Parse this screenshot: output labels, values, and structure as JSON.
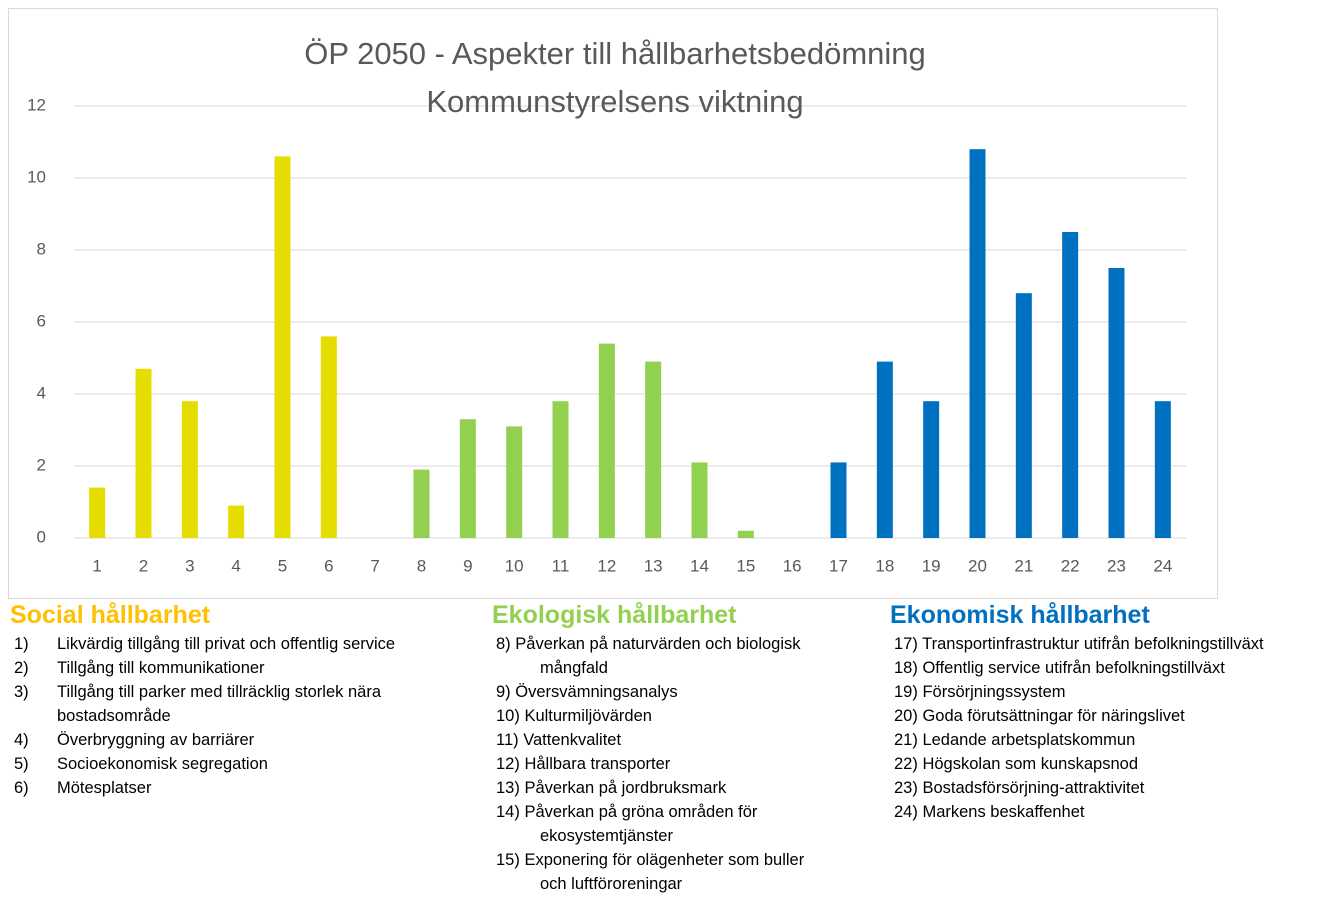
{
  "chart_data": {
    "type": "bar",
    "title": "ÖP 2050 - Aspekter till hållbarhetsbedömning",
    "subtitle": "Kommunstyrelsens viktning",
    "categories": [
      "1",
      "2",
      "3",
      "4",
      "5",
      "6",
      "7",
      "8",
      "9",
      "10",
      "11",
      "12",
      "13",
      "14",
      "15",
      "16",
      "17",
      "18",
      "19",
      "20",
      "21",
      "22",
      "23",
      "24"
    ],
    "values": [
      1.4,
      4.7,
      3.8,
      0.9,
      10.6,
      5.6,
      0,
      1.9,
      3.3,
      3.1,
      3.8,
      5.4,
      4.9,
      2.1,
      0.2,
      0,
      2.1,
      4.9,
      3.8,
      10.8,
      6.8,
      8.5,
      7.5,
      3.8
    ],
    "colors": [
      "#e5dc00",
      "#e5dc00",
      "#e5dc00",
      "#e5dc00",
      "#e5dc00",
      "#e5dc00",
      "#e5dc00",
      "#92d050",
      "#92d050",
      "#92d050",
      "#92d050",
      "#92d050",
      "#92d050",
      "#92d050",
      "#92d050",
      "#92d050",
      "#0070c0",
      "#0070c0",
      "#0070c0",
      "#0070c0",
      "#0070c0",
      "#0070c0",
      "#0070c0",
      "#0070c0"
    ],
    "ylim": [
      0,
      12
    ],
    "yticks": [
      0,
      2,
      4,
      6,
      8,
      10,
      12
    ],
    "grid": true
  },
  "legend_groups": [
    {
      "heading": "Social hållbarhet",
      "color": "#ffc000",
      "items": [
        {
          "num": "1)",
          "text": "Likvärdig tillgång till privat och offentlig service"
        },
        {
          "num": "2)",
          "text": "Tillgång till kommunikationer"
        },
        {
          "num": "3)",
          "text": "Tillgång till parker med tillräcklig storlek nära bostadsområde"
        },
        {
          "num": "4)",
          "text": "Överbryggning av barriärer"
        },
        {
          "num": "5)",
          "text": "Socioekonomisk segregation"
        },
        {
          "num": "6)",
          "text": "Mötesplatser"
        }
      ]
    },
    {
      "heading": "Ekologisk hållbarhet",
      "color": "#92d050",
      "items": [
        {
          "num": "8)",
          "text": "Påverkan på naturvärden och biologisk mångfald"
        },
        {
          "num": "9)",
          "text": "Översvämningsanalys"
        },
        {
          "num": "10)",
          "text": "Kulturmiljövärden"
        },
        {
          "num": "11)",
          "text": "Vattenkvalitet"
        },
        {
          "num": "12)",
          "text": "Hållbara transporter"
        },
        {
          "num": "13)",
          "text": "Påverkan på jordbruksmark"
        },
        {
          "num": "14)",
          "text": "Påverkan på gröna områden för ekosystemtjänster"
        },
        {
          "num": "15)",
          "text": "Exponering för olägenheter som buller och luftföroreningar"
        }
      ]
    },
    {
      "heading": "Ekonomisk hållbarhet",
      "color": "#0070c0",
      "items": [
        {
          "num": "17)",
          "text": "Transportinfrastruktur utifrån befolkningstillväxt"
        },
        {
          "num": "18)",
          "text": "Offentlig service utifrån befolkningstillväxt"
        },
        {
          "num": "19)",
          "text": "Försörjningssystem"
        },
        {
          "num": "20)",
          "text": "Goda förutsättningar för näringslivet"
        },
        {
          "num": "21)",
          "text": "Ledande arbetsplatskommun"
        },
        {
          "num": "22)",
          "text": "Högskolan som kunskapsnod"
        },
        {
          "num": "23)",
          "text": "Bostadsförsörjning-attraktivitet"
        },
        {
          "num": "24)",
          "text": "Markens beskaffenhet"
        }
      ]
    }
  ]
}
